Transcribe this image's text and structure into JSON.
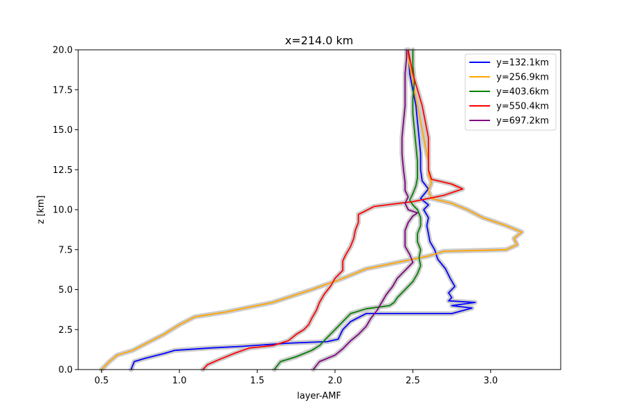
{
  "chart_data": {
    "type": "line",
    "title": "x=214.0 km",
    "xlabel": "layer-AMF",
    "ylabel": "z [km]",
    "xlim": [
      0.35,
      3.45
    ],
    "ylim": [
      0,
      20
    ],
    "xticks": [
      "0.5",
      "1.0",
      "1.5",
      "2.0",
      "2.5",
      "3.0"
    ],
    "yticks": [
      "0.0",
      "2.5",
      "5.0",
      "7.5",
      "10.0",
      "12.5",
      "15.0",
      "17.5",
      "20.0"
    ],
    "grid": false,
    "legend_position": "top-right",
    "uncertainty_band_color": "#cccccc",
    "series": [
      {
        "name": "y=132.1km",
        "color": "#0000ff",
        "points": [
          [
            0.69,
            0
          ],
          [
            0.71,
            0.5
          ],
          [
            0.78,
            0.7
          ],
          [
            0.9,
            1.0
          ],
          [
            0.97,
            1.2
          ],
          [
            1.2,
            1.35
          ],
          [
            1.4,
            1.45
          ],
          [
            1.7,
            1.65
          ],
          [
            1.95,
            1.75
          ],
          [
            2.02,
            1.9
          ],
          [
            2.05,
            2.5
          ],
          [
            2.1,
            3.0
          ],
          [
            2.2,
            3.5
          ],
          [
            2.75,
            3.5
          ],
          [
            2.88,
            3.85
          ],
          [
            2.75,
            4.0
          ],
          [
            2.9,
            4.2
          ],
          [
            2.73,
            4.3
          ],
          [
            2.75,
            4.5
          ],
          [
            2.73,
            4.8
          ],
          [
            2.77,
            5.2
          ],
          [
            2.74,
            5.7
          ],
          [
            2.71,
            6.3
          ],
          [
            2.66,
            6.9
          ],
          [
            2.64,
            7.5
          ],
          [
            2.61,
            8.0
          ],
          [
            2.6,
            8.5
          ],
          [
            2.59,
            9.0
          ],
          [
            2.6,
            9.5
          ],
          [
            2.57,
            10.0
          ],
          [
            2.6,
            10.3
          ],
          [
            2.55,
            10.7
          ],
          [
            2.6,
            11.3
          ],
          [
            2.56,
            11.8
          ],
          [
            2.55,
            12.5
          ],
          [
            2.55,
            13.5
          ],
          [
            2.54,
            14.5
          ],
          [
            2.53,
            15.5
          ],
          [
            2.52,
            16.5
          ],
          [
            2.5,
            17.5
          ],
          [
            2.48,
            18.5
          ],
          [
            2.47,
            20.0
          ]
        ]
      },
      {
        "name": "y=256.9km",
        "color": "#ffa500",
        "points": [
          [
            0.5,
            0
          ],
          [
            0.55,
            0.5
          ],
          [
            0.6,
            0.9
          ],
          [
            0.7,
            1.2
          ],
          [
            0.8,
            1.7
          ],
          [
            0.9,
            2.2
          ],
          [
            1.0,
            2.8
          ],
          [
            1.1,
            3.3
          ],
          [
            1.3,
            3.6
          ],
          [
            1.6,
            4.2
          ],
          [
            1.85,
            5.0
          ],
          [
            2.05,
            5.7
          ],
          [
            2.2,
            6.3
          ],
          [
            2.45,
            6.8
          ],
          [
            2.6,
            7.1
          ],
          [
            2.7,
            7.4
          ],
          [
            3.1,
            7.5
          ],
          [
            3.17,
            7.8
          ],
          [
            3.15,
            8.2
          ],
          [
            3.2,
            8.6
          ],
          [
            3.1,
            9.0
          ],
          [
            2.95,
            9.5
          ],
          [
            2.85,
            10.0
          ],
          [
            2.75,
            10.4
          ],
          [
            2.62,
            10.7
          ],
          [
            2.6,
            11.2
          ],
          [
            2.62,
            11.7
          ],
          [
            2.6,
            12.2
          ],
          [
            2.6,
            13.0
          ],
          [
            2.58,
            14.0
          ],
          [
            2.56,
            15.0
          ],
          [
            2.54,
            16.0
          ],
          [
            2.52,
            17.0
          ],
          [
            2.5,
            18.0
          ],
          [
            2.48,
            19.0
          ],
          [
            2.46,
            20.0
          ]
        ]
      },
      {
        "name": "y=403.6km",
        "color": "#008000",
        "points": [
          [
            1.61,
            0
          ],
          [
            1.65,
            0.5
          ],
          [
            1.75,
            0.8
          ],
          [
            1.85,
            1.2
          ],
          [
            1.9,
            1.5
          ],
          [
            1.95,
            2.0
          ],
          [
            2.0,
            2.5
          ],
          [
            2.05,
            3.0
          ],
          [
            2.1,
            3.5
          ],
          [
            2.2,
            3.8
          ],
          [
            2.35,
            4.0
          ],
          [
            2.38,
            4.2
          ],
          [
            2.4,
            4.5
          ],
          [
            2.45,
            5.0
          ],
          [
            2.5,
            5.5
          ],
          [
            2.53,
            6.0
          ],
          [
            2.55,
            6.5
          ],
          [
            2.54,
            7.0
          ],
          [
            2.55,
            7.5
          ],
          [
            2.53,
            8.0
          ],
          [
            2.53,
            8.5
          ],
          [
            2.55,
            9.0
          ],
          [
            2.55,
            9.5
          ],
          [
            2.53,
            10.0
          ],
          [
            2.5,
            10.3
          ],
          [
            2.48,
            10.6
          ],
          [
            2.5,
            11.0
          ],
          [
            2.52,
            11.5
          ],
          [
            2.53,
            12.0
          ],
          [
            2.53,
            13.0
          ],
          [
            2.52,
            14.0
          ],
          [
            2.51,
            15.0
          ],
          [
            2.5,
            16.0
          ],
          [
            2.5,
            17.0
          ],
          [
            2.51,
            18.0
          ],
          [
            2.5,
            19.0
          ],
          [
            2.5,
            20.0
          ]
        ]
      },
      {
        "name": "y=550.4km",
        "color": "#ff0000",
        "points": [
          [
            1.15,
            0
          ],
          [
            1.18,
            0.3
          ],
          [
            1.25,
            0.6
          ],
          [
            1.35,
            1.0
          ],
          [
            1.45,
            1.35
          ],
          [
            1.6,
            1.5
          ],
          [
            1.7,
            1.8
          ],
          [
            1.75,
            2.2
          ],
          [
            1.8,
            2.5
          ],
          [
            1.83,
            2.8
          ],
          [
            1.85,
            3.2
          ],
          [
            1.88,
            3.7
          ],
          [
            1.9,
            4.2
          ],
          [
            1.93,
            4.7
          ],
          [
            1.97,
            5.2
          ],
          [
            2.0,
            5.7
          ],
          [
            2.05,
            6.2
          ],
          [
            2.05,
            6.8
          ],
          [
            2.07,
            7.2
          ],
          [
            2.1,
            7.7
          ],
          [
            2.12,
            8.2
          ],
          [
            2.13,
            8.7
          ],
          [
            2.15,
            9.2
          ],
          [
            2.15,
            9.7
          ],
          [
            2.25,
            10.2
          ],
          [
            2.5,
            10.5
          ],
          [
            2.7,
            10.9
          ],
          [
            2.82,
            11.3
          ],
          [
            2.75,
            11.6
          ],
          [
            2.62,
            11.9
          ],
          [
            2.6,
            12.5
          ],
          [
            2.6,
            13.5
          ],
          [
            2.6,
            14.5
          ],
          [
            2.58,
            15.5
          ],
          [
            2.56,
            16.5
          ],
          [
            2.53,
            17.5
          ],
          [
            2.5,
            18.5
          ],
          [
            2.48,
            19.5
          ],
          [
            2.47,
            20.0
          ]
        ]
      },
      {
        "name": "y=697.2km",
        "color": "#800080",
        "points": [
          [
            1.86,
            0
          ],
          [
            1.9,
            0.5
          ],
          [
            2.0,
            0.9
          ],
          [
            2.05,
            1.3
          ],
          [
            2.1,
            1.8
          ],
          [
            2.15,
            2.2
          ],
          [
            2.2,
            2.7
          ],
          [
            2.23,
            3.2
          ],
          [
            2.27,
            3.7
          ],
          [
            2.3,
            4.2
          ],
          [
            2.33,
            4.7
          ],
          [
            2.37,
            5.2
          ],
          [
            2.4,
            5.7
          ],
          [
            2.45,
            6.2
          ],
          [
            2.5,
            6.7
          ],
          [
            2.48,
            7.2
          ],
          [
            2.45,
            7.7
          ],
          [
            2.45,
            8.2
          ],
          [
            2.45,
            8.7
          ],
          [
            2.47,
            9.2
          ],
          [
            2.5,
            9.6
          ],
          [
            2.53,
            9.8
          ],
          [
            2.47,
            10.0
          ],
          [
            2.45,
            10.4
          ],
          [
            2.47,
            10.8
          ],
          [
            2.45,
            11.2
          ],
          [
            2.45,
            11.7
          ],
          [
            2.44,
            12.5
          ],
          [
            2.43,
            13.5
          ],
          [
            2.43,
            14.5
          ],
          [
            2.44,
            15.5
          ],
          [
            2.45,
            16.5
          ],
          [
            2.45,
            17.5
          ],
          [
            2.45,
            18.5
          ],
          [
            2.46,
            19.5
          ],
          [
            2.46,
            20.0
          ]
        ]
      }
    ]
  }
}
